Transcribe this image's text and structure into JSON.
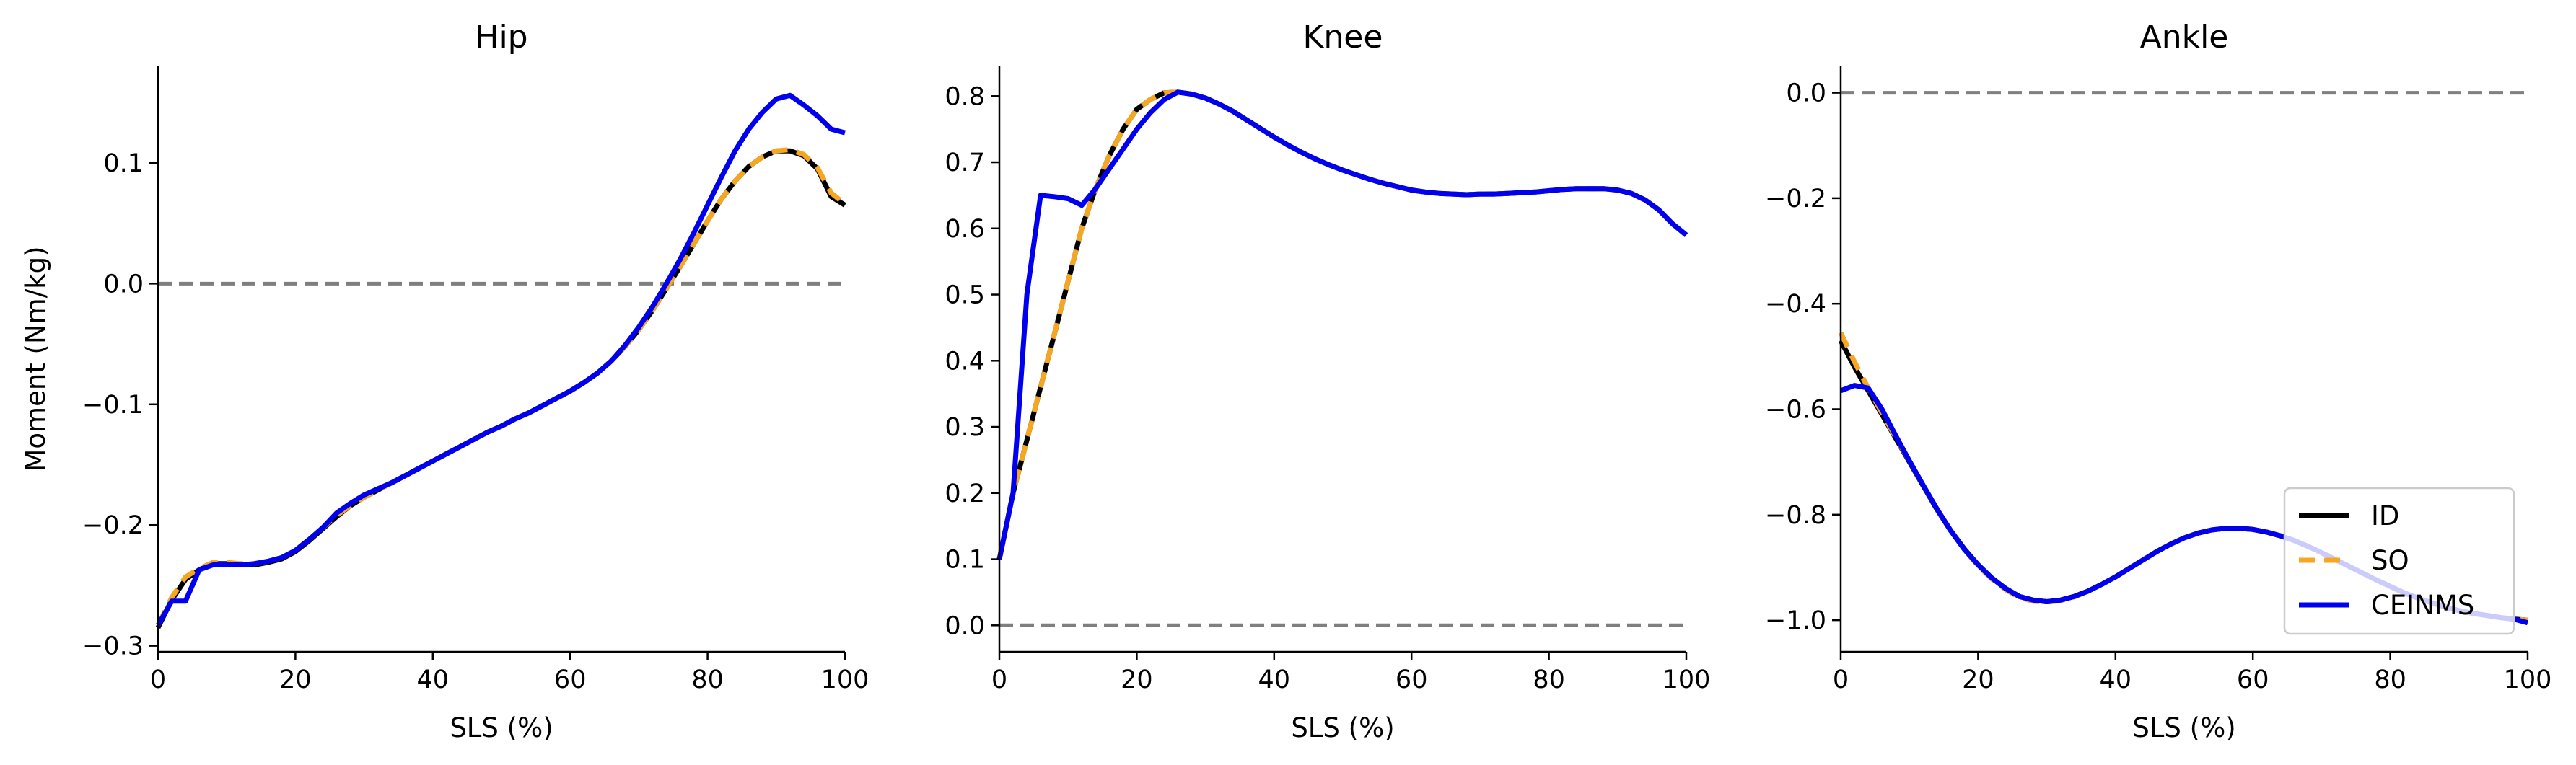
{
  "colors": {
    "ID": "#000000",
    "SO": "#f5a623",
    "CEINMS": "#0000ee",
    "zero_line": "#7f7f7f"
  },
  "legend": {
    "placement": "lower-right of Ankle panel",
    "entries": [
      {
        "label": "ID",
        "style": "solid",
        "color": "#000000"
      },
      {
        "label": "SO",
        "style": "dashed",
        "color": "#f5a623"
      },
      {
        "label": "CEINMS",
        "style": "solid",
        "color": "#0000ee"
      }
    ]
  },
  "chart_data": [
    {
      "type": "line",
      "title": "Hip",
      "xlabel": "SLS (%)",
      "ylabel": "Moment (Nm/kg)",
      "xlim": [
        0,
        100
      ],
      "ylim": [
        -0.305,
        0.18
      ],
      "xticks": [
        "0",
        "20",
        "40",
        "60",
        "80",
        "100"
      ],
      "yticks": [
        -0.3,
        -0.2,
        -0.1,
        0.0,
        0.1
      ],
      "ytick_labels": [
        "−0.3",
        "−0.2",
        "−0.1",
        "0.0",
        "0.1"
      ],
      "zero_line": true,
      "x": [
        0,
        2,
        4,
        6,
        8,
        10,
        12,
        14,
        16,
        18,
        20,
        22,
        24,
        26,
        28,
        30,
        32,
        34,
        36,
        38,
        40,
        42,
        44,
        46,
        48,
        50,
        52,
        54,
        56,
        58,
        60,
        62,
        64,
        66,
        68,
        70,
        72,
        74,
        76,
        78,
        80,
        82,
        84,
        86,
        88,
        90,
        92,
        94,
        96,
        98,
        100
      ],
      "series": [
        {
          "name": "ID",
          "values": [
            -0.285,
            -0.262,
            -0.245,
            -0.237,
            -0.232,
            -0.232,
            -0.233,
            -0.233,
            -0.231,
            -0.228,
            -0.222,
            -0.213,
            -0.203,
            -0.193,
            -0.184,
            -0.177,
            -0.171,
            -0.165,
            -0.159,
            -0.153,
            -0.147,
            -0.141,
            -0.135,
            -0.129,
            -0.123,
            -0.118,
            -0.112,
            -0.107,
            -0.101,
            -0.095,
            -0.089,
            -0.082,
            -0.074,
            -0.064,
            -0.052,
            -0.038,
            -0.022,
            -0.004,
            0.014,
            0.033,
            0.052,
            0.07,
            0.085,
            0.097,
            0.105,
            0.11,
            0.11,
            0.106,
            0.095,
            0.072,
            0.065
          ]
        },
        {
          "name": "SO",
          "values": [
            -0.283,
            -0.26,
            -0.243,
            -0.236,
            -0.231,
            -0.231,
            -0.232,
            -0.232,
            -0.23,
            -0.227,
            -0.221,
            -0.212,
            -0.202,
            -0.192,
            -0.184,
            -0.177,
            -0.171,
            -0.165,
            -0.159,
            -0.153,
            -0.147,
            -0.141,
            -0.135,
            -0.129,
            -0.123,
            -0.118,
            -0.112,
            -0.107,
            -0.101,
            -0.095,
            -0.089,
            -0.082,
            -0.074,
            -0.064,
            -0.052,
            -0.038,
            -0.022,
            -0.004,
            0.014,
            0.033,
            0.052,
            0.07,
            0.085,
            0.097,
            0.105,
            0.11,
            0.111,
            0.107,
            0.096,
            0.075,
            0.066
          ]
        },
        {
          "name": "CEINMS",
          "values": [
            -0.283,
            -0.263,
            -0.263,
            -0.237,
            -0.233,
            -0.233,
            -0.233,
            -0.232,
            -0.23,
            -0.227,
            -0.221,
            -0.212,
            -0.202,
            -0.19,
            -0.182,
            -0.175,
            -0.17,
            -0.165,
            -0.159,
            -0.153,
            -0.147,
            -0.141,
            -0.135,
            -0.129,
            -0.123,
            -0.118,
            -0.112,
            -0.107,
            -0.101,
            -0.095,
            -0.089,
            -0.082,
            -0.074,
            -0.064,
            -0.051,
            -0.036,
            -0.019,
            0.0,
            0.02,
            0.042,
            0.065,
            0.088,
            0.11,
            0.128,
            0.142,
            0.153,
            0.156,
            0.148,
            0.139,
            0.128,
            0.125
          ]
        }
      ]
    },
    {
      "type": "line",
      "title": "Knee",
      "xlabel": "SLS (%)",
      "ylabel": "",
      "xlim": [
        0,
        100
      ],
      "ylim": [
        -0.04,
        0.845
      ],
      "xticks": [
        "0",
        "20",
        "40",
        "60",
        "80",
        "100"
      ],
      "yticks": [
        0.0,
        0.1,
        0.2,
        0.3,
        0.4,
        0.5,
        0.6,
        0.7,
        0.8
      ],
      "ytick_labels": [
        "0.0",
        "0.1",
        "0.2",
        "0.3",
        "0.4",
        "0.5",
        "0.6",
        "0.7",
        "0.8"
      ],
      "zero_line": true,
      "x": [
        0,
        2,
        4,
        6,
        8,
        10,
        12,
        14,
        16,
        18,
        20,
        22,
        24,
        26,
        28,
        30,
        32,
        34,
        36,
        38,
        40,
        42,
        44,
        46,
        48,
        50,
        52,
        54,
        56,
        58,
        60,
        62,
        64,
        66,
        68,
        70,
        72,
        74,
        76,
        78,
        80,
        82,
        84,
        86,
        88,
        90,
        92,
        94,
        96,
        98,
        100
      ],
      "series": [
        {
          "name": "ID",
          "values": [
            0.1,
            0.2,
            0.28,
            0.36,
            0.44,
            0.52,
            0.6,
            0.66,
            0.71,
            0.75,
            0.78,
            0.795,
            0.805,
            0.806,
            0.803,
            0.797,
            0.788,
            0.777,
            0.764,
            0.751,
            0.738,
            0.726,
            0.715,
            0.705,
            0.696,
            0.688,
            0.681,
            0.674,
            0.668,
            0.663,
            0.658,
            0.655,
            0.653,
            0.652,
            0.651,
            0.652,
            0.652,
            0.653,
            0.654,
            0.655,
            0.657,
            0.659,
            0.66,
            0.66,
            0.66,
            0.658,
            0.653,
            0.643,
            0.628,
            0.607,
            0.59
          ]
        },
        {
          "name": "SO",
          "values": [
            0.1,
            0.2,
            0.28,
            0.36,
            0.44,
            0.52,
            0.6,
            0.66,
            0.71,
            0.75,
            0.78,
            0.795,
            0.805,
            0.806,
            0.803,
            0.797,
            0.788,
            0.777,
            0.764,
            0.751,
            0.738,
            0.726,
            0.715,
            0.705,
            0.696,
            0.688,
            0.681,
            0.674,
            0.668,
            0.663,
            0.658,
            0.655,
            0.653,
            0.652,
            0.651,
            0.652,
            0.652,
            0.653,
            0.654,
            0.655,
            0.657,
            0.659,
            0.66,
            0.66,
            0.66,
            0.658,
            0.653,
            0.643,
            0.628,
            0.607,
            0.59
          ]
        },
        {
          "name": "CEINMS",
          "values": [
            0.1,
            0.2,
            0.5,
            0.65,
            0.648,
            0.645,
            0.635,
            0.66,
            0.69,
            0.72,
            0.75,
            0.775,
            0.795,
            0.806,
            0.803,
            0.797,
            0.788,
            0.777,
            0.764,
            0.751,
            0.738,
            0.726,
            0.715,
            0.705,
            0.696,
            0.688,
            0.681,
            0.674,
            0.668,
            0.663,
            0.658,
            0.655,
            0.653,
            0.652,
            0.651,
            0.652,
            0.652,
            0.653,
            0.654,
            0.655,
            0.657,
            0.659,
            0.66,
            0.66,
            0.66,
            0.658,
            0.653,
            0.643,
            0.628,
            0.607,
            0.59
          ]
        }
      ]
    },
    {
      "type": "line",
      "title": "Ankle",
      "xlabel": "SLS (%)",
      "ylabel": "",
      "xlim": [
        0,
        100
      ],
      "ylim": [
        -1.06,
        0.05
      ],
      "xticks": [
        "0",
        "20",
        "40",
        "60",
        "80",
        "100"
      ],
      "yticks": [
        0.0,
        -0.2,
        -0.4,
        -0.6,
        -0.8,
        -1.0
      ],
      "ytick_labels": [
        "0.0",
        "−0.2",
        "−0.4",
        "−0.6",
        "−0.8",
        "−1.0"
      ],
      "zero_line": true,
      "x": [
        0,
        2,
        4,
        6,
        8,
        10,
        12,
        14,
        16,
        18,
        20,
        22,
        24,
        26,
        28,
        30,
        32,
        34,
        36,
        38,
        40,
        42,
        44,
        46,
        48,
        50,
        52,
        54,
        56,
        58,
        60,
        62,
        64,
        66,
        68,
        70,
        72,
        74,
        76,
        78,
        80,
        82,
        84,
        86,
        88,
        90,
        92,
        94,
        96,
        98,
        100
      ],
      "series": [
        {
          "name": "ID",
          "values": [
            -0.47,
            -0.52,
            -0.565,
            -0.61,
            -0.655,
            -0.7,
            -0.745,
            -0.79,
            -0.83,
            -0.865,
            -0.895,
            -0.92,
            -0.94,
            -0.955,
            -0.962,
            -0.965,
            -0.962,
            -0.955,
            -0.945,
            -0.932,
            -0.918,
            -0.902,
            -0.886,
            -0.87,
            -0.856,
            -0.844,
            -0.835,
            -0.829,
            -0.826,
            -0.826,
            -0.828,
            -0.833,
            -0.84,
            -0.849,
            -0.86,
            -0.872,
            -0.885,
            -0.898,
            -0.911,
            -0.924,
            -0.936,
            -0.948,
            -0.958,
            -0.967,
            -0.975,
            -0.982,
            -0.987,
            -0.991,
            -0.995,
            -0.998,
            -1.0
          ]
        },
        {
          "name": "SO",
          "values": [
            -0.455,
            -0.51,
            -0.56,
            -0.607,
            -0.653,
            -0.698,
            -0.744,
            -0.789,
            -0.83,
            -0.866,
            -0.897,
            -0.922,
            -0.942,
            -0.957,
            -0.964,
            -0.966,
            -0.963,
            -0.956,
            -0.945,
            -0.932,
            -0.918,
            -0.902,
            -0.886,
            -0.87,
            -0.856,
            -0.844,
            -0.835,
            -0.829,
            -0.826,
            -0.826,
            -0.828,
            -0.833,
            -0.84,
            -0.849,
            -0.86,
            -0.872,
            -0.885,
            -0.898,
            -0.911,
            -0.924,
            -0.936,
            -0.948,
            -0.958,
            -0.967,
            -0.975,
            -0.982,
            -0.987,
            -0.991,
            -0.995,
            -0.998,
            -1.0
          ]
        },
        {
          "name": "CEINMS",
          "values": [
            -0.565,
            -0.555,
            -0.56,
            -0.6,
            -0.65,
            -0.698,
            -0.744,
            -0.789,
            -0.83,
            -0.866,
            -0.895,
            -0.92,
            -0.94,
            -0.955,
            -0.962,
            -0.965,
            -0.962,
            -0.955,
            -0.945,
            -0.932,
            -0.918,
            -0.902,
            -0.886,
            -0.87,
            -0.856,
            -0.844,
            -0.835,
            -0.829,
            -0.826,
            -0.826,
            -0.828,
            -0.833,
            -0.84,
            -0.849,
            -0.86,
            -0.872,
            -0.885,
            -0.898,
            -0.911,
            -0.924,
            -0.936,
            -0.948,
            -0.958,
            -0.967,
            -0.975,
            -0.982,
            -0.987,
            -0.991,
            -0.995,
            -0.998,
            -1.005
          ]
        }
      ]
    }
  ]
}
